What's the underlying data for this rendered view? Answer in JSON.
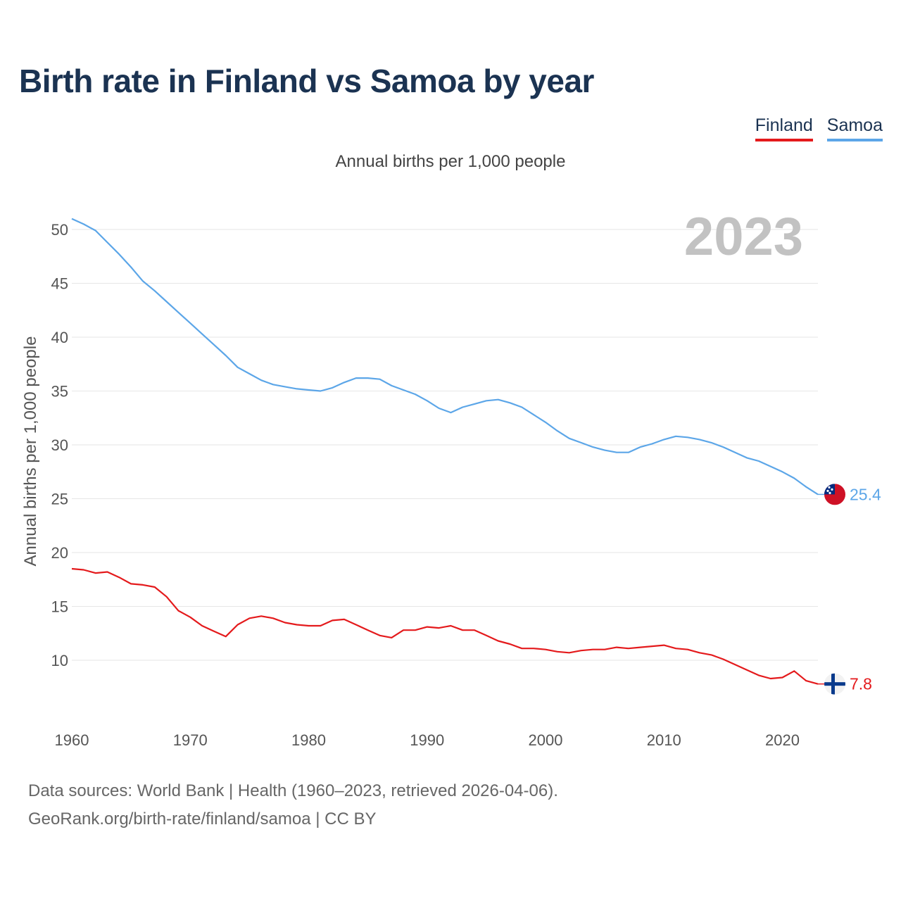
{
  "title": "Birth rate in Finland vs Samoa by year",
  "legend": [
    {
      "label": "Finland",
      "color": "#e41a1c"
    },
    {
      "label": "Samoa",
      "color": "#5ca6e8"
    }
  ],
  "footer": {
    "line1": "Data sources: World Bank | Health (1960–2023, retrieved 2026-04-06).",
    "line2": "GeoRank.org/birth-rate/finland/samoa | CC BY"
  },
  "chart_data": {
    "type": "line",
    "title": "Birth rate in Finland vs Samoa by year",
    "subtitle": "Annual births per 1,000 people",
    "ylabel": "Annual births per 1,000 people",
    "xlabel": "",
    "year_label": "2023",
    "xlim": [
      1960,
      2023
    ],
    "ylim": [
      5,
      52
    ],
    "x_ticks": [
      1960,
      1970,
      1980,
      1990,
      2000,
      2010,
      2020
    ],
    "y_ticks": [
      10,
      15,
      20,
      25,
      30,
      35,
      40,
      45,
      50
    ],
    "grid": true,
    "x": [
      1960,
      1961,
      1962,
      1963,
      1964,
      1965,
      1966,
      1967,
      1968,
      1969,
      1970,
      1971,
      1972,
      1973,
      1974,
      1975,
      1976,
      1977,
      1978,
      1979,
      1980,
      1981,
      1982,
      1983,
      1984,
      1985,
      1986,
      1987,
      1988,
      1989,
      1990,
      1991,
      1992,
      1993,
      1994,
      1995,
      1996,
      1997,
      1998,
      1999,
      2000,
      2001,
      2002,
      2003,
      2004,
      2005,
      2006,
      2007,
      2008,
      2009,
      2010,
      2011,
      2012,
      2013,
      2014,
      2015,
      2016,
      2017,
      2018,
      2019,
      2020,
      2021,
      2022,
      2023
    ],
    "series": [
      {
        "name": "Samoa",
        "color": "#5ca6e8",
        "end_label": "25.4",
        "values": [
          51.0,
          50.5,
          49.9,
          48.8,
          47.7,
          46.5,
          45.2,
          44.3,
          43.3,
          42.3,
          41.3,
          40.3,
          39.3,
          38.3,
          37.2,
          36.6,
          36.0,
          35.6,
          35.4,
          35.2,
          35.1,
          35.0,
          35.3,
          35.8,
          36.2,
          36.2,
          36.1,
          35.5,
          35.1,
          34.7,
          34.1,
          33.4,
          33.0,
          33.5,
          33.8,
          34.1,
          34.2,
          33.9,
          33.5,
          32.8,
          32.1,
          31.3,
          30.6,
          30.2,
          29.8,
          29.5,
          29.3,
          29.3,
          29.8,
          30.1,
          30.5,
          30.8,
          30.7,
          30.5,
          30.2,
          29.8,
          29.3,
          28.8,
          28.5,
          28.0,
          27.5,
          26.9,
          26.1,
          25.4
        ]
      },
      {
        "name": "Finland",
        "color": "#e41a1c",
        "end_label": "7.8",
        "values": [
          18.5,
          18.4,
          18.1,
          18.2,
          17.7,
          17.1,
          17.0,
          16.8,
          15.9,
          14.6,
          14.0,
          13.2,
          12.7,
          12.2,
          13.3,
          13.9,
          14.1,
          13.9,
          13.5,
          13.3,
          13.2,
          13.2,
          13.7,
          13.8,
          13.3,
          12.8,
          12.3,
          12.1,
          12.8,
          12.8,
          13.1,
          13.0,
          13.2,
          12.8,
          12.8,
          12.3,
          11.8,
          11.5,
          11.1,
          11.1,
          11.0,
          10.8,
          10.7,
          10.9,
          11.0,
          11.0,
          11.2,
          11.1,
          11.2,
          11.3,
          11.4,
          11.1,
          11.0,
          10.7,
          10.5,
          10.1,
          9.6,
          9.1,
          8.6,
          8.3,
          8.4,
          9.0,
          8.1,
          7.8
        ]
      }
    ]
  }
}
